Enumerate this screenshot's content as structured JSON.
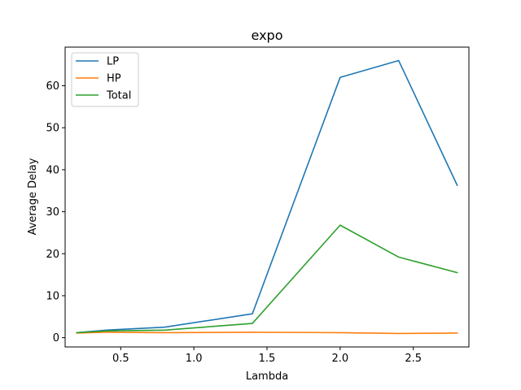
{
  "chart_data": {
    "type": "line",
    "title": "expo",
    "xlabel": "Lambda",
    "ylabel": "Average Delay",
    "xlim": [
      0.12,
      2.88
    ],
    "ylim": [
      -2.2,
      69.2
    ],
    "xticks": [
      0.5,
      1.0,
      1.5,
      2.0,
      2.5
    ],
    "xtick_labels": [
      "0.5",
      "1.0",
      "1.5",
      "2.0",
      "2.5"
    ],
    "yticks": [
      0,
      10,
      20,
      30,
      40,
      50,
      60
    ],
    "ytick_labels": [
      "0",
      "10",
      "20",
      "30",
      "40",
      "50",
      "60"
    ],
    "grid": false,
    "legend_position": "upper-left",
    "x": [
      0.2,
      0.4,
      0.8,
      1.4,
      2.0,
      2.4,
      2.8
    ],
    "series": [
      {
        "name": "LP",
        "color": "#1f77b4",
        "values": [
          1.2,
          1.8,
          2.5,
          5.7,
          62.0,
          66.0,
          36.3
        ]
      },
      {
        "name": "HP",
        "color": "#ff7f0e",
        "values": [
          1.1,
          1.3,
          1.2,
          1.3,
          1.2,
          1.0,
          1.1
        ]
      },
      {
        "name": "Total",
        "color": "#2ca02c",
        "values": [
          1.2,
          1.6,
          1.8,
          3.4,
          26.8,
          19.2,
          15.5
        ]
      }
    ]
  }
}
